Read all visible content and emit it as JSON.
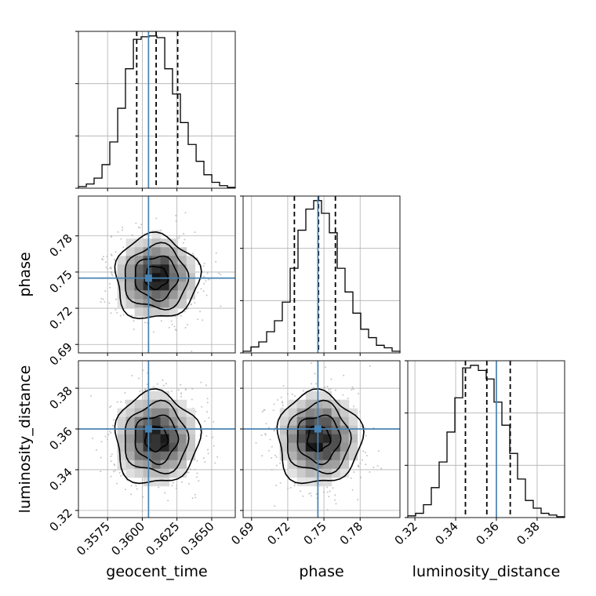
{
  "chart_data": {
    "type": "corner",
    "parameters": [
      "geocent_time",
      "phase",
      "luminosity_distance"
    ],
    "ranges": {
      "geocent_time": [
        0.3554,
        0.3667
      ],
      "phase": [
        0.683,
        0.813
      ],
      "luminosity_distance": [
        0.3165,
        0.3935
      ]
    },
    "ticks": {
      "geocent_time": [
        0.3575,
        0.36,
        0.3625,
        0.365
      ],
      "phase": [
        0.69,
        0.72,
        0.75,
        0.78
      ],
      "luminosity_distance": [
        0.32,
        0.34,
        0.36,
        0.38
      ]
    },
    "tick_labels": {
      "geocent_time": [
        "0.3575",
        "0.3600",
        "0.3625",
        "0.3650"
      ],
      "phase": [
        "0.69",
        "0.72",
        "0.75",
        "0.78"
      ],
      "luminosity_distance": [
        "0.32",
        "0.34",
        "0.36",
        "0.38"
      ]
    },
    "truths": {
      "geocent_time": 0.36045,
      "phase": 0.745,
      "luminosity_distance": 0.36
    },
    "quantiles": {
      "geocent_time": [
        0.3596,
        0.361,
        0.36255
      ],
      "phase": [
        0.7255,
        0.7455,
        0.7595
      ],
      "luminosity_distance": [
        0.3448,
        0.3553,
        0.3668
      ]
    },
    "histograms": {
      "geocent_time": {
        "edges": [
          0.3554,
          0.35597,
          0.35653,
          0.3571,
          0.35766,
          0.35823,
          0.35879,
          0.35936,
          0.35992,
          0.36049,
          0.36105,
          0.36162,
          0.36218,
          0.36275,
          0.36331,
          0.36388,
          0.36444,
          0.36501,
          0.36557,
          0.36614,
          0.3667
        ],
        "counts": [
          2,
          5,
          12,
          28,
          55,
          95,
          142,
          177,
          180,
          181,
          179,
          142,
          112,
          78,
          52,
          32,
          16,
          7,
          3,
          1
        ]
      },
      "phase": {
        "edges": [
          0.683,
          0.6895,
          0.696,
          0.7025,
          0.709,
          0.7155,
          0.722,
          0.7285,
          0.735,
          0.7415,
          0.748,
          0.7545,
          0.761,
          0.7675,
          0.774,
          0.7805,
          0.787,
          0.7935,
          0.8,
          0.8065,
          0.813
        ],
        "counts": [
          2,
          7,
          13,
          25,
          38,
          60,
          100,
          145,
          170,
          180,
          165,
          142,
          100,
          72,
          47,
          28,
          18,
          9,
          6,
          2
        ]
      },
      "luminosity_distance": {
        "edges": [
          0.3165,
          0.32035,
          0.3242,
          0.32805,
          0.3319,
          0.33575,
          0.3396,
          0.34345,
          0.3473,
          0.35115,
          0.355,
          0.35885,
          0.3627,
          0.36655,
          0.3704,
          0.37425,
          0.3781,
          0.38195,
          0.3858,
          0.38965,
          0.3935
        ],
        "counts": [
          2,
          5,
          15,
          35,
          65,
          100,
          140,
          175,
          178,
          172,
          162,
          135,
          108,
          75,
          45,
          20,
          11,
          5,
          3,
          1
        ]
      }
    },
    "contour_levels": [
      0.39,
      0.86,
      0.99
    ]
  }
}
